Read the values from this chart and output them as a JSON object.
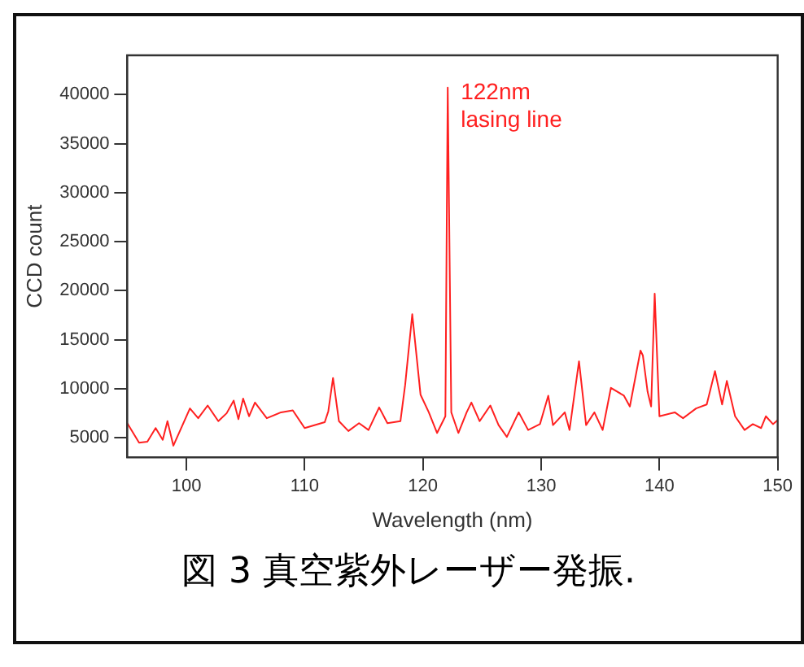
{
  "chart_data": {
    "type": "line",
    "xlabel": "Wavelength (nm)",
    "ylabel": "CCD count",
    "marker": "none",
    "line_style": "solid",
    "xlim": [
      95,
      150
    ],
    "xticks": [
      100,
      110,
      120,
      130,
      140,
      150
    ],
    "ylim": [
      3000,
      44000
    ],
    "yticks": [
      5000,
      10000,
      15000,
      20000,
      25000,
      30000,
      35000,
      40000
    ],
    "annotations": [
      {
        "text": "122nm\nlasing line",
        "x": 122.1,
        "y": 40700
      },
      "図 3 真空紫外レーザー発振."
    ],
    "series": [
      {
        "color": "#ff2020",
        "x": [
          95,
          96,
          96.7,
          97.4,
          98,
          98.4,
          98.9,
          100.3,
          101,
          101.8,
          102.7,
          103.4,
          104,
          104.4,
          104.8,
          105.3,
          105.8,
          106.8,
          108,
          109,
          110,
          111.7,
          112,
          112.4,
          112.9,
          113.7,
          114.6,
          115.4,
          116.3,
          117,
          118.1,
          118.5,
          119.1,
          119.8,
          120.5,
          121.2,
          121.9,
          122.1,
          122.4,
          123,
          123.7,
          124.1,
          124.8,
          125.7,
          126.4,
          127.1,
          128.1,
          128.9,
          129.9,
          130.6,
          131,
          132,
          132.4,
          133.2,
          133.8,
          134.5,
          135.2,
          135.9,
          137,
          137.5,
          138.4,
          138.6,
          139,
          139.3,
          139.6,
          140,
          141.3,
          142,
          143.1,
          144,
          144.7,
          145.3,
          145.7,
          146.4,
          147.2,
          147.9,
          148.6,
          149,
          149.6,
          150
        ],
        "values": [
          6500,
          4500,
          4600,
          6000,
          4800,
          6700,
          4200,
          8000,
          7000,
          8300,
          6700,
          7500,
          8800,
          6900,
          9000,
          7200,
          8600,
          7000,
          7600,
          7800,
          6000,
          6600,
          7700,
          11100,
          6700,
          5700,
          6500,
          5800,
          8100,
          6500,
          6700,
          10400,
          17600,
          9400,
          7600,
          5500,
          7200,
          40700,
          7600,
          5500,
          7600,
          8600,
          6700,
          8300,
          6300,
          5100,
          7600,
          5800,
          6400,
          9300,
          6300,
          7600,
          5800,
          12800,
          6300,
          7600,
          5800,
          10100,
          9300,
          8200,
          13900,
          13400,
          9700,
          8200,
          19700,
          7200,
          7600,
          7000,
          8000,
          8400,
          11800,
          8400,
          10800,
          7200,
          5800,
          6400,
          6000,
          7200,
          6400,
          6800
        ]
      }
    ]
  }
}
